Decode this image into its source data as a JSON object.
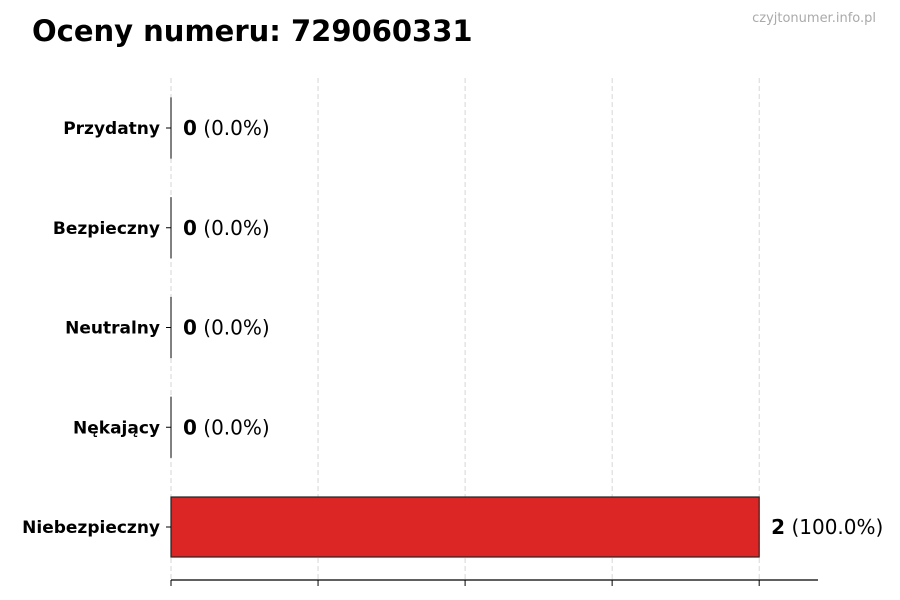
{
  "title": "Oceny numeru: 729060331",
  "watermark": "czyjtonumer.info.pl",
  "chart_data": {
    "type": "bar",
    "orientation": "horizontal",
    "title": "Oceny numeru: 729060331",
    "xlabel": "",
    "ylabel": "",
    "categories": [
      "Przydatny",
      "Bezpieczny",
      "Neutralny",
      "Nękający",
      "Niebezpieczny"
    ],
    "values": [
      0,
      0,
      0,
      0,
      2
    ],
    "value_labels": [
      "0",
      "0",
      "0",
      "0",
      "2"
    ],
    "percent_labels": [
      "(0.0%)",
      "(0.0%)",
      "(0.0%)",
      "(0.0%)",
      "(100.0%)"
    ],
    "xlim": [
      0,
      2.2
    ],
    "xticks": [
      0,
      0.5,
      1,
      1.5,
      2
    ],
    "grid": "vertical dashed",
    "bar_color": "#dc2626",
    "edge_color": "#222222"
  }
}
